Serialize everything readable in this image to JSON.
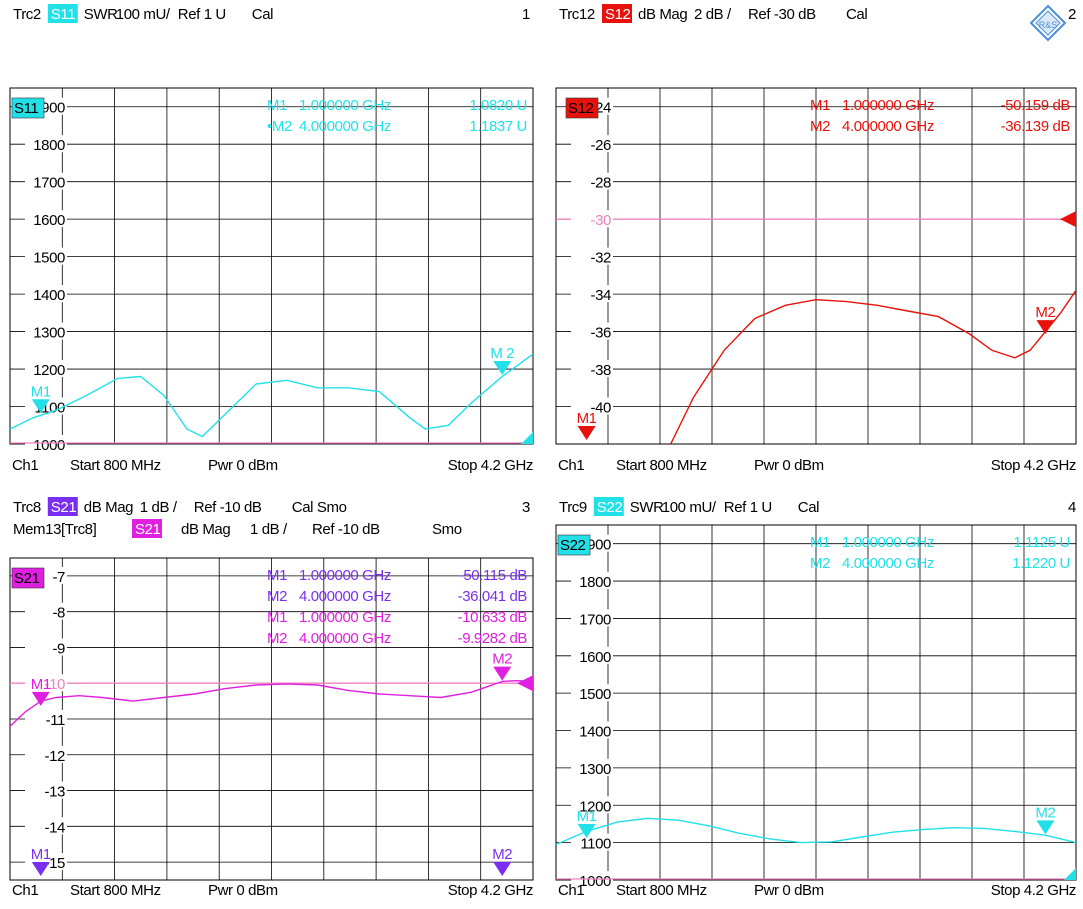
{
  "logo": {
    "name": "rohde-schwarz-logo-icon",
    "text": "R&S"
  },
  "colors": {
    "cyan": "#22e0e8",
    "red": "#e8120c",
    "purple": "#7a2ff0",
    "magenta": "#e020e0",
    "ref_line": "#f080c0",
    "grid": "#000000",
    "background": "#ffffff"
  },
  "chart_data": [
    {
      "type": "line",
      "id": "p1",
      "header": {
        "trace": "Trc2",
        "badge": "S11",
        "format": "SWR",
        "scale": "100 mU/",
        "ref": "Ref 1 U",
        "cal": "Cal",
        "num": "1"
      },
      "tag": "S11",
      "scale_kind": "swr",
      "y_top": 1950,
      "y_step": 100,
      "ylim_bottom": 1000,
      "ticks": [
        {
          "v": 1900,
          "t": "1900"
        },
        {
          "v": 1800,
          "t": "1800"
        },
        {
          "v": 1700,
          "t": "1700"
        },
        {
          "v": 1600,
          "t": "1600"
        },
        {
          "v": 1500,
          "t": "1500"
        },
        {
          "v": 1400,
          "t": "1400"
        },
        {
          "v": 1300,
          "t": "1300"
        },
        {
          "v": 1200,
          "t": "1200"
        },
        {
          "v": 1100,
          "t": "1100"
        },
        {
          "v": 1000,
          "t": "1000"
        }
      ],
      "ref_value": 1000,
      "xlim_ghz": [
        0.8,
        4.2
      ],
      "series": [
        {
          "color": "cyan",
          "x": [
            0.8,
            0.95,
            1.1,
            1.3,
            1.5,
            1.65,
            1.8,
            1.95,
            2.05,
            2.2,
            2.4,
            2.6,
            2.8,
            3.0,
            3.2,
            3.4,
            3.5,
            3.65,
            3.8,
            4.0,
            4.1,
            4.2
          ],
          "y": [
            1040,
            1070,
            1090,
            1130,
            1175,
            1180,
            1130,
            1040,
            1020,
            1080,
            1160,
            1170,
            1150,
            1150,
            1140,
            1070,
            1040,
            1050,
            1110,
            1180,
            1210,
            1240
          ]
        }
      ],
      "markers": [
        {
          "label": "M1",
          "x": 1.0,
          "y": 1082,
          "color": "cyan"
        },
        {
          "label": "M 2",
          "x": 4.0,
          "y": 1184,
          "color": "cyan"
        }
      ],
      "marker_table": [
        {
          "name": "M1",
          "freq": "1.000000 GHz",
          "val": "1.0820 U",
          "color": "cyan"
        },
        {
          "name": "•M2",
          "freq": "4.000000 GHz",
          "val": "1.1837 U",
          "color": "cyan"
        }
      ],
      "footer": {
        "ch": "Ch1",
        "start": "Start 800 MHz",
        "pwr": "Pwr 0 dBm",
        "stop": "Stop 4.2 GHz"
      }
    },
    {
      "type": "line",
      "id": "p2",
      "header": {
        "trace": "Trc12",
        "badge": "S12",
        "format": "dB Mag",
        "scale": "2 dB /",
        "ref": "Ref -30 dB",
        "cal": "Cal",
        "num": "2"
      },
      "tag": "S12",
      "scale_kind": "db",
      "y_top": -23,
      "y_step": 2,
      "ylim_bottom": -42,
      "ticks": [
        {
          "v": -24,
          "t": "-24"
        },
        {
          "v": -26,
          "t": "-26"
        },
        {
          "v": -28,
          "t": "-28"
        },
        {
          "v": -30,
          "t": "-30"
        },
        {
          "v": -32,
          "t": "-32"
        },
        {
          "v": -34,
          "t": "-34"
        },
        {
          "v": -36,
          "t": "-36"
        },
        {
          "v": -38,
          "t": "-38"
        },
        {
          "v": -40,
          "t": "-40"
        }
      ],
      "ref_value": -30,
      "xlim_ghz": [
        0.8,
        4.2
      ],
      "series": [
        {
          "color": "red",
          "x": [
            1.55,
            1.7,
            1.9,
            2.1,
            2.3,
            2.5,
            2.7,
            2.9,
            3.1,
            3.3,
            3.5,
            3.65,
            3.8,
            3.9,
            4.0,
            4.1,
            4.2
          ],
          "y": [
            -42.0,
            -39.5,
            -37.0,
            -35.3,
            -34.6,
            -34.3,
            -34.4,
            -34.6,
            -34.9,
            -35.2,
            -36.1,
            -37.0,
            -37.4,
            -37.0,
            -36.0,
            -35.0,
            -33.8
          ]
        }
      ],
      "markers": [
        {
          "label": "M1",
          "x": 1.0,
          "y": -50.159,
          "color": "red"
        },
        {
          "label": "M2",
          "x": 4.0,
          "y": -36.139,
          "color": "red"
        }
      ],
      "marker_table": [
        {
          "name": "M1",
          "freq": "1.000000 GHz",
          "val": "-50.159 dB",
          "color": "red"
        },
        {
          "name": "M2",
          "freq": "4.000000 GHz",
          "val": "-36.139 dB",
          "color": "red"
        }
      ],
      "footer": {
        "ch": "Ch1",
        "start": "Start 800 MHz",
        "pwr": "Pwr 0 dBm",
        "stop": "Stop 4.2 GHz"
      }
    },
    {
      "type": "line",
      "id": "p3",
      "header": {
        "trace": "Trc8",
        "badge": "S21",
        "format": "dB Mag",
        "scale": "1 dB /",
        "ref": "Ref -10 dB",
        "cal": "Cal Smo",
        "num": "3"
      },
      "header2": {
        "trace": "Mem13[Trc8]",
        "badge": "S21",
        "format": "dB Mag",
        "scale": "1 dB /",
        "ref": "Ref -10 dB",
        "cal": "Smo"
      },
      "tag": "S21",
      "scale_kind": "db",
      "y_top": -6.5,
      "y_step": 1,
      "ylim_bottom": -15.5,
      "ticks": [
        {
          "v": -7,
          "t": "-7"
        },
        {
          "v": -8,
          "t": "-8"
        },
        {
          "v": -9,
          "t": "-9"
        },
        {
          "v": -10,
          "t": "-10"
        },
        {
          "v": -11,
          "t": "-11"
        },
        {
          "v": -12,
          "t": "-12"
        },
        {
          "v": -13,
          "t": "-13"
        },
        {
          "v": -14,
          "t": "-14"
        },
        {
          "v": -15,
          "t": "-15"
        }
      ],
      "ref_value": -10,
      "xlim_ghz": [
        0.8,
        4.2
      ],
      "series": [
        {
          "color": "magenta",
          "x": [
            0.8,
            0.9,
            1.0,
            1.1,
            1.25,
            1.4,
            1.6,
            1.8,
            2.0,
            2.2,
            2.4,
            2.6,
            2.8,
            3.0,
            3.2,
            3.4,
            3.6,
            3.8,
            3.9,
            4.0,
            4.1,
            4.2
          ],
          "y": [
            -11.2,
            -10.8,
            -10.5,
            -10.4,
            -10.35,
            -10.4,
            -10.5,
            -10.4,
            -10.3,
            -10.15,
            -10.05,
            -10.02,
            -10.05,
            -10.2,
            -10.3,
            -10.35,
            -10.4,
            -10.25,
            -10.1,
            -9.95,
            -9.93,
            -9.95
          ]
        }
      ],
      "markers": [
        {
          "label": "M1",
          "x": 1.0,
          "y": -10.633,
          "color": "magenta"
        },
        {
          "label": "M2",
          "x": 4.0,
          "y": -9.9282,
          "color": "magenta"
        },
        {
          "label": "M1",
          "x": 1.0,
          "y": -50.115,
          "color": "purple"
        },
        {
          "label": "M2",
          "x": 4.0,
          "y": -36.041,
          "color": "purple"
        }
      ],
      "marker_table": [
        {
          "name": "M1",
          "freq": "1.000000 GHz",
          "val": "-50.115 dB",
          "color": "purple"
        },
        {
          "name": "M2",
          "freq": "4.000000 GHz",
          "val": "-36.041 dB",
          "color": "purple"
        },
        {
          "name": "M1",
          "freq": "1.000000 GHz",
          "val": "-10.633 dB",
          "color": "magenta"
        },
        {
          "name": "M2",
          "freq": "4.000000 GHz",
          "val": "-9.9282 dB",
          "color": "magenta"
        }
      ],
      "footer": {
        "ch": "Ch1",
        "start": "Start 800 MHz",
        "pwr": "Pwr 0 dBm",
        "stop": "Stop 4.2 GHz"
      }
    },
    {
      "type": "line",
      "id": "p4",
      "header": {
        "trace": "Trc9",
        "badge": "S22",
        "format": "SWR",
        "scale": "100 mU/",
        "ref": "Ref 1 U",
        "cal": "Cal",
        "num": "4"
      },
      "tag": "S22",
      "scale_kind": "swr",
      "y_top": 1950,
      "y_step": 100,
      "ylim_bottom": 1000,
      "ticks": [
        {
          "v": 1900,
          "t": "1900"
        },
        {
          "v": 1800,
          "t": "1800"
        },
        {
          "v": 1700,
          "t": "1700"
        },
        {
          "v": 1600,
          "t": "1600"
        },
        {
          "v": 1500,
          "t": "1500"
        },
        {
          "v": 1400,
          "t": "1400"
        },
        {
          "v": 1300,
          "t": "1300"
        },
        {
          "v": 1200,
          "t": "1200"
        },
        {
          "v": 1100,
          "t": "1100"
        },
        {
          "v": 1000,
          "t": "1000"
        }
      ],
      "ref_value": 1000,
      "xlim_ghz": [
        0.8,
        4.2
      ],
      "series": [
        {
          "color": "cyan",
          "x": [
            0.8,
            1.0,
            1.2,
            1.4,
            1.6,
            1.8,
            2.0,
            2.2,
            2.4,
            2.6,
            2.8,
            3.0,
            3.2,
            3.4,
            3.6,
            3.8,
            4.0,
            4.2
          ],
          "y": [
            1095,
            1130,
            1155,
            1165,
            1160,
            1145,
            1125,
            1110,
            1100,
            1102,
            1115,
            1128,
            1135,
            1140,
            1138,
            1130,
            1120,
            1100
          ]
        }
      ],
      "markers": [
        {
          "label": "M1",
          "x": 1.0,
          "y": 1112.5,
          "color": "cyan"
        },
        {
          "label": "M2",
          "x": 4.0,
          "y": 1122,
          "color": "cyan"
        }
      ],
      "marker_table": [
        {
          "name": "M1",
          "freq": "1.000000 GHz",
          "val": "1.1125 U",
          "color": "cyan"
        },
        {
          "name": "M2",
          "freq": "4.000000 GHz",
          "val": "1.1220 U",
          "color": "cyan"
        }
      ],
      "footer": {
        "ch": "Ch1",
        "start": "Start 800 MHz",
        "pwr": "Pwr 0 dBm",
        "stop": "Stop 4.2 GHz"
      }
    }
  ]
}
